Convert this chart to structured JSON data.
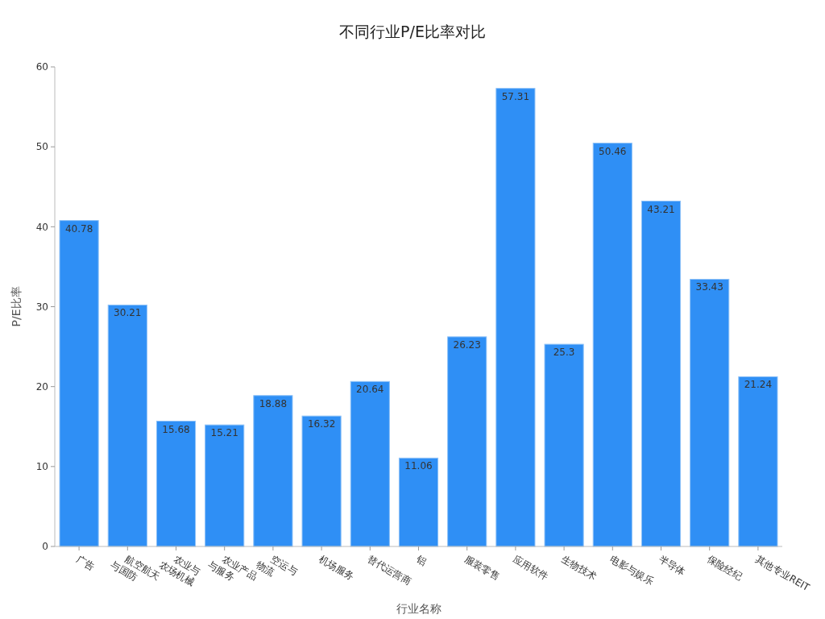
{
  "chart_data": {
    "type": "bar",
    "title": "不同行业P/E比率对比",
    "xlabel": "行业名称",
    "ylabel": "P/E比率",
    "categories": [
      "广告",
      "航空航天\n与国防",
      "农业与\n农场机械",
      "农业产品\n与服务",
      "空运与\n物流",
      "机场服务",
      "替代运营商",
      "铝",
      "服装零售",
      "应用软件",
      "生物技术",
      "电影与娱乐",
      "半导体",
      "保险经纪",
      "其他专业REIT"
    ],
    "values": [
      40.78,
      30.21,
      15.68,
      15.21,
      18.88,
      16.32,
      20.64,
      11.06,
      26.23,
      57.31,
      25.3,
      50.46,
      43.21,
      33.43,
      21.24
    ],
    "color": "#2f8ff5",
    "ylim": [
      0,
      60
    ],
    "yticks": [
      0,
      10,
      20,
      30,
      40,
      50,
      60
    ],
    "grid": false,
    "data_labels": true
  }
}
